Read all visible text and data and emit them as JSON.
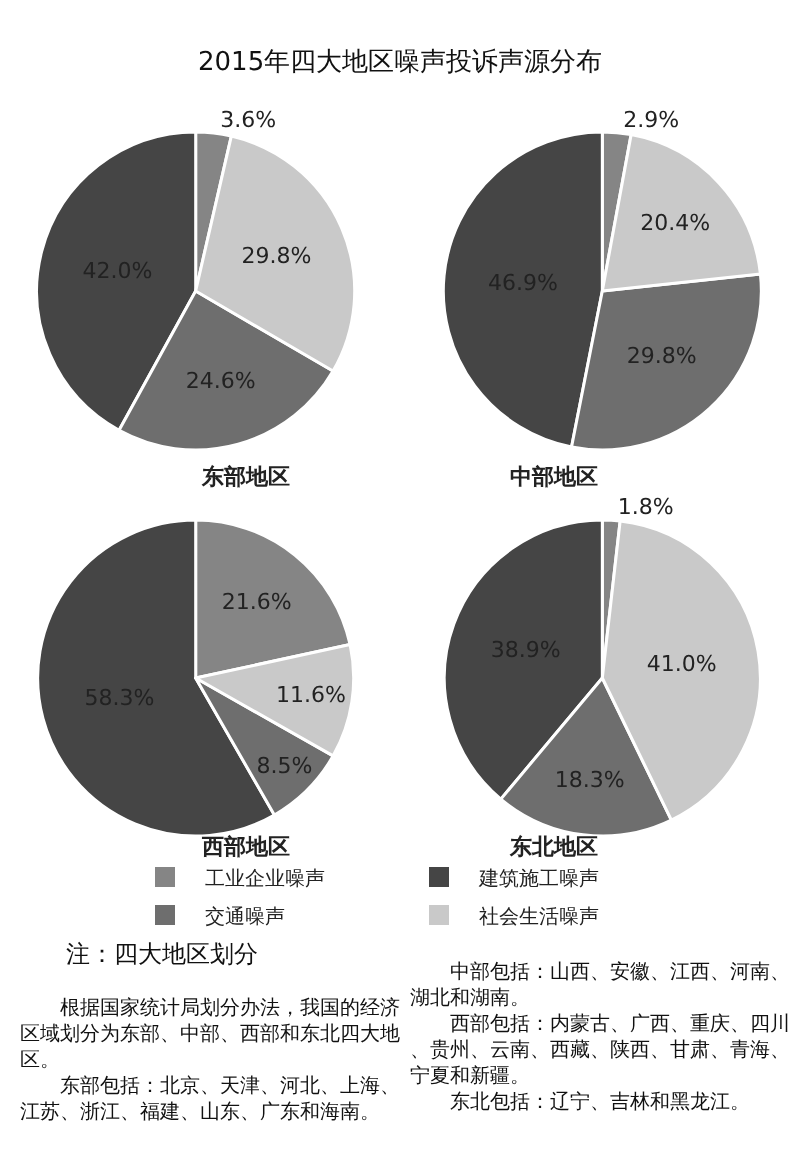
{
  "chart_data": [
    {
      "type": "pie",
      "title": "2015年四大地区噪声投诉声源分布",
      "subtitle": "东部地区",
      "legend": "bottom",
      "categories": [
        "工业企业噪声",
        "建筑施工噪声",
        "交通噪声",
        "社会生活噪声"
      ],
      "values": [
        3.6,
        42.0,
        24.6,
        29.8
      ],
      "value_labels": [
        "3.6%",
        "42.0%",
        "24.6%",
        "29.8%"
      ],
      "colors": [
        "#858585",
        "#454545",
        "#6e6e6e",
        "#c9c9c9"
      ]
    },
    {
      "type": "pie",
      "subtitle": "中部地区",
      "categories": [
        null,
        null,
        null,
        null
      ],
      "values": [
        2.9,
        46.9,
        29.8,
        20.4
      ],
      "value_labels": [
        "2.9%",
        "46.9%",
        "29.8%",
        "20.4%"
      ],
      "colors": [
        "#858585",
        "#454545",
        "#6e6e6e",
        "#c9c9c9"
      ]
    },
    {
      "type": "pie",
      "subtitle": "西部地区",
      "categories": [
        null,
        null,
        null,
        null
      ],
      "values": [
        21.6,
        58.3,
        8.5,
        11.6
      ],
      "value_labels": [
        "21.6%",
        "58.3%",
        "8.5%",
        "11.6%"
      ],
      "colors": [
        "#858585",
        "#454545",
        "#6e6e6e",
        "#c9c9c9"
      ]
    },
    {
      "type": "pie",
      "subtitle": "东北地区",
      "categories": [
        null,
        null,
        null,
        null
      ],
      "values": [
        1.8,
        38.9,
        18.3,
        41.0
      ],
      "value_labels": [
        "1.8%",
        "38.9%",
        "18.3%",
        "41.0%"
      ],
      "colors": [
        "#858585",
        "#454545",
        "#6e6e6e",
        "#c9c9c9"
      ]
    },
    {
      "type": "other",
      "title": "注：四大地区划分",
      "annotations": [
        "根据国家统计局划分办法，我国的经济区域划分为东部、中部、西部和东北四大地区。",
        "东部包括：北京、天津、河北、上海、江苏、浙江、福建、山东、广东和海南。",
        "中部包括：山西、安徽、江西、河南、湖北和湖南。",
        "西部包括：内蒙古、广西、重庆、四川、贵州、云南、西藏、陕西、甘肃、青海、宁夏和新疆。",
        "东北包括：辽宁、吉林和黑龙江。"
      ]
    }
  ]
}
